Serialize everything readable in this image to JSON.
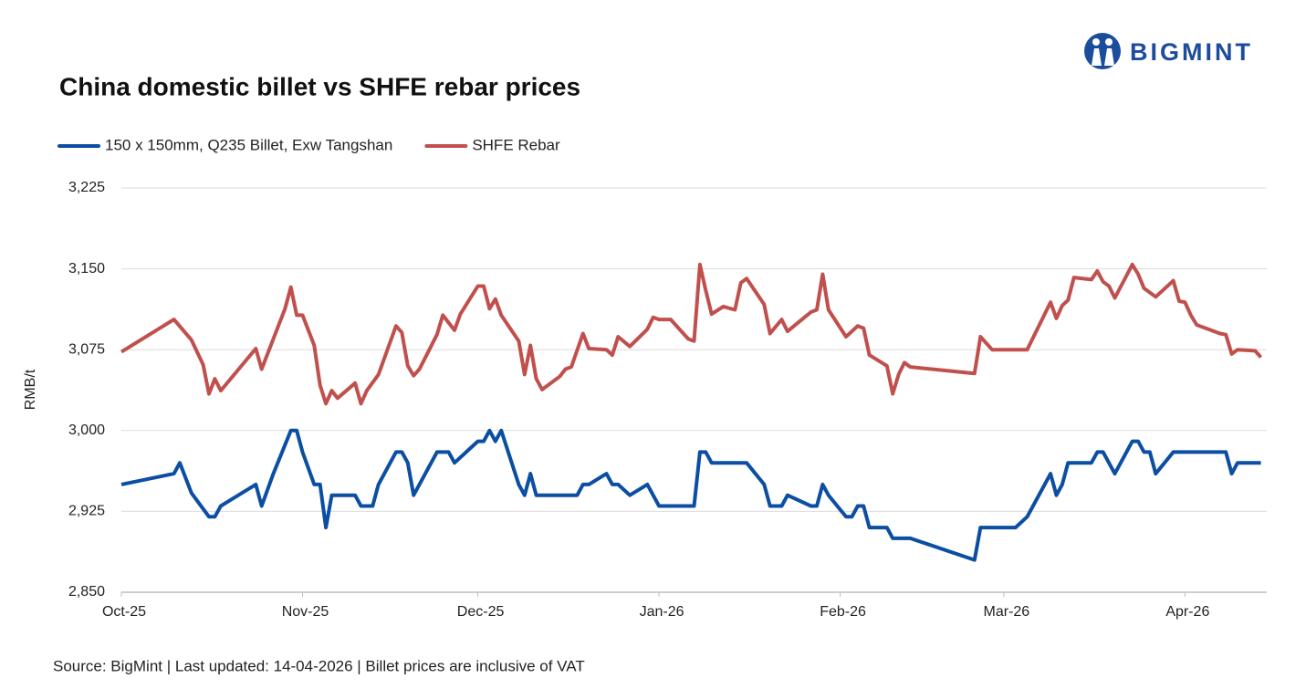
{
  "brand": "BIGMINT",
  "chart_data": {
    "type": "line",
    "title": "China domestic billet vs SHFE rebar prices",
    "ylabel": "RMB/t",
    "note": "Source: BigMint | Last updated: 14-04-2026 | Billet prices are inclusive of VAT",
    "xlim": [
      0,
      196
    ],
    "xticks": [
      {
        "value": 0,
        "label": "Oct-25"
      },
      {
        "value": 31,
        "label": "Nov-25"
      },
      {
        "value": 61,
        "label": "Dec-25"
      },
      {
        "value": 92,
        "label": "Jan-26"
      },
      {
        "value": 123,
        "label": "Feb-26"
      },
      {
        "value": 151,
        "label": "Mar-26"
      },
      {
        "value": 182,
        "label": "Apr-26"
      }
    ],
    "ylim": [
      2850,
      3225
    ],
    "yticks": [
      {
        "value": 2850,
        "label": "2,850"
      },
      {
        "value": 2925,
        "label": "2,925"
      },
      {
        "value": 3000,
        "label": "3,000"
      },
      {
        "value": 3075,
        "label": "3,075"
      },
      {
        "value": 3150,
        "label": "3,150"
      },
      {
        "value": 3225,
        "label": "3,225"
      }
    ],
    "grid": true,
    "legend": "top-left",
    "series": [
      {
        "name": "150 x 150mm, Q235 Billet, Exw Tangshan",
        "color": "#0b4ea2",
        "x": [
          0,
          9,
          10,
          12,
          15,
          16,
          17,
          23,
          24,
          26,
          29,
          30,
          31,
          33,
          34,
          35,
          36,
          40,
          41,
          43,
          44,
          47,
          48,
          49,
          50,
          54,
          56,
          57,
          59,
          61,
          62,
          63,
          64,
          65,
          68,
          69,
          70,
          71,
          78,
          79,
          80,
          83,
          84,
          85,
          87,
          90,
          92,
          98,
          99,
          100,
          101,
          107,
          110,
          111,
          113,
          114,
          118,
          119,
          120,
          121,
          124,
          125,
          126,
          127,
          128,
          131,
          132,
          135,
          146,
          147,
          153,
          155,
          156,
          159,
          160,
          161,
          162,
          166,
          167,
          168,
          170,
          173,
          174,
          175,
          176,
          177,
          180,
          189,
          190,
          191,
          195
        ],
        "values": [
          2950,
          2960,
          2970,
          2942,
          2920,
          2920,
          2930,
          2950,
          2930,
          2960,
          3000,
          3000,
          2980,
          2950,
          2950,
          2910,
          2940,
          2940,
          2930,
          2930,
          2950,
          2980,
          2980,
          2970,
          2940,
          2980,
          2980,
          2970,
          2980,
          2990,
          2990,
          3000,
          2990,
          3000,
          2950,
          2940,
          2960,
          2940,
          2940,
          2950,
          2950,
          2960,
          2950,
          2950,
          2940,
          2950,
          2930,
          2930,
          2980,
          2980,
          2970,
          2970,
          2950,
          2930,
          2930,
          2940,
          2930,
          2930,
          2950,
          2940,
          2920,
          2920,
          2930,
          2930,
          2910,
          2910,
          2900,
          2900,
          2880,
          2910,
          2910,
          2920,
          2930,
          2960,
          2940,
          2950,
          2970,
          2970,
          2980,
          2980,
          2960,
          2990,
          2990,
          2980,
          2980,
          2960,
          2980,
          2980,
          2960,
          2970,
          2970
        ]
      },
      {
        "name": "SHFE Rebar",
        "color": "#c0504d",
        "x": [
          0,
          9,
          12,
          14,
          15,
          16,
          17,
          23,
          24,
          28,
          29,
          30,
          31,
          33,
          34,
          35,
          36,
          37,
          40,
          41,
          42,
          44,
          47,
          48,
          49,
          50,
          51,
          54,
          55,
          57,
          58,
          61,
          62,
          63,
          64,
          65,
          68,
          69,
          70,
          71,
          72,
          75,
          76,
          77,
          79,
          80,
          83,
          84,
          85,
          87,
          90,
          91,
          92,
          94,
          97,
          98,
          99,
          100,
          101,
          103,
          105,
          106,
          107,
          110,
          111,
          113,
          114,
          118,
          119,
          120,
          121,
          124,
          126,
          127,
          128,
          131,
          132,
          133,
          134,
          135,
          146,
          147,
          149,
          155,
          159,
          160,
          161,
          162,
          163,
          166,
          167,
          168,
          169,
          170,
          173,
          174,
          175,
          177,
          180,
          181,
          182,
          183,
          184,
          188,
          189,
          190,
          191,
          194,
          195
        ],
        "values": [
          3073,
          3103,
          3084,
          3061,
          3034,
          3048,
          3037,
          3076,
          3057,
          3113,
          3133,
          3107,
          3107,
          3079,
          3042,
          3025,
          3037,
          3030,
          3044,
          3025,
          3037,
          3052,
          3097,
          3091,
          3060,
          3051,
          3057,
          3089,
          3107,
          3093,
          3108,
          3134,
          3134,
          3113,
          3122,
          3107,
          3083,
          3052,
          3079,
          3048,
          3038,
          3050,
          3057,
          3059,
          3090,
          3076,
          3075,
          3070,
          3087,
          3078,
          3094,
          3105,
          3103,
          3103,
          3085,
          3083,
          3154,
          3130,
          3108,
          3115,
          3112,
          3137,
          3141,
          3117,
          3090,
          3103,
          3092,
          3110,
          3112,
          3145,
          3112,
          3087,
          3097,
          3095,
          3070,
          3060,
          3034,
          3052,
          3063,
          3059,
          3053,
          3087,
          3075,
          3075,
          3119,
          3104,
          3116,
          3121,
          3142,
          3140,
          3148,
          3138,
          3134,
          3123,
          3154,
          3145,
          3132,
          3124,
          3139,
          3120,
          3119,
          3107,
          3098,
          3090,
          3089,
          3071,
          3075,
          3074,
          3068
        ]
      }
    ]
  }
}
